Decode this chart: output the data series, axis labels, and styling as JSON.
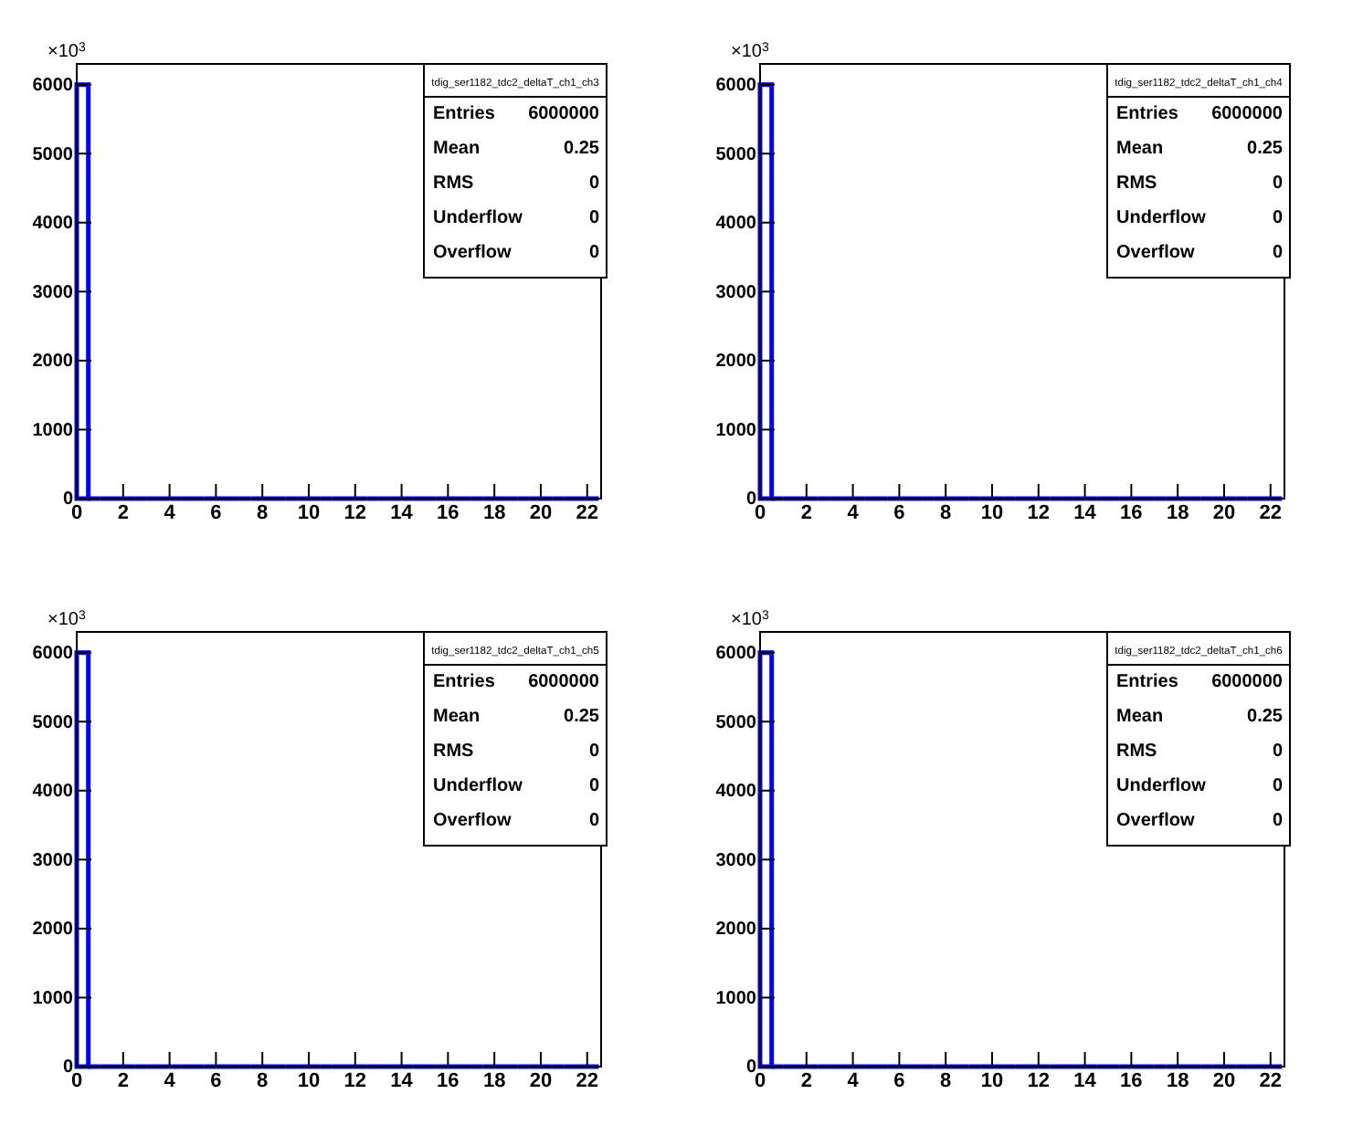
{
  "chart_data": [
    {
      "type": "histogram",
      "bins": [
        0,
        0.5,
        1,
        1.5,
        2,
        2.5,
        3,
        3.5,
        4,
        4.5,
        5,
        5.5,
        6,
        6.5,
        7,
        7.5,
        8,
        8.5,
        9,
        9.5,
        10,
        10.5,
        11,
        11.5,
        12,
        12.5,
        13,
        13.5,
        14,
        14.5,
        15,
        15.5,
        16,
        16.5,
        17,
        17.5,
        18,
        18.5,
        19,
        19.5,
        20,
        20.5,
        21,
        21.5,
        22,
        22.5
      ],
      "values": [
        6000,
        0,
        0,
        0,
        0,
        0,
        0,
        0,
        0,
        0,
        0,
        0,
        0,
        0,
        0,
        0,
        0,
        0,
        0,
        0,
        0,
        0,
        0,
        0,
        0,
        0,
        0,
        0,
        0,
        0,
        0,
        0,
        0,
        0,
        0,
        0,
        0,
        0,
        0,
        0,
        0,
        0,
        0,
        0,
        0
      ],
      "color": "#0000ff",
      "xlim": [
        0,
        22.6
      ],
      "xticks": [
        0,
        2,
        4,
        6,
        8,
        10,
        12,
        14,
        16,
        18,
        20,
        22
      ],
      "ylim": [
        0,
        6300
      ],
      "yticks": [
        0,
        1000,
        2000,
        3000,
        4000,
        5000,
        6000
      ],
      "annotations": [
        "×10$^{3}$",
        "tdig_ser1182_tdc2_deltaT_ch1_ch3",
        "Entries",
        "6000000",
        "Mean",
        "0.25",
        "RMS",
        "0",
        "Underflow",
        "0",
        "Overflow",
        "0"
      ]
    },
    {
      "type": "histogram",
      "bins": [
        0,
        0.5,
        1,
        1.5,
        2,
        2.5,
        3,
        3.5,
        4,
        4.5,
        5,
        5.5,
        6,
        6.5,
        7,
        7.5,
        8,
        8.5,
        9,
        9.5,
        10,
        10.5,
        11,
        11.5,
        12,
        12.5,
        13,
        13.5,
        14,
        14.5,
        15,
        15.5,
        16,
        16.5,
        17,
        17.5,
        18,
        18.5,
        19,
        19.5,
        20,
        20.5,
        21,
        21.5,
        22,
        22.5
      ],
      "values": [
        6000,
        0,
        0,
        0,
        0,
        0,
        0,
        0,
        0,
        0,
        0,
        0,
        0,
        0,
        0,
        0,
        0,
        0,
        0,
        0,
        0,
        0,
        0,
        0,
        0,
        0,
        0,
        0,
        0,
        0,
        0,
        0,
        0,
        0,
        0,
        0,
        0,
        0,
        0,
        0,
        0,
        0,
        0,
        0,
        0
      ],
      "color": "#0000ff",
      "xlim": [
        0,
        22.6
      ],
      "xticks": [
        0,
        2,
        4,
        6,
        8,
        10,
        12,
        14,
        16,
        18,
        20,
        22
      ],
      "ylim": [
        0,
        6300
      ],
      "yticks": [
        0,
        1000,
        2000,
        3000,
        4000,
        5000,
        6000
      ],
      "annotations": [
        "×10$^{3}$",
        "tdig_ser1182_tdc2_deltaT_ch1_ch4",
        "Entries",
        "6000000",
        "Mean",
        "0.25",
        "RMS",
        "0",
        "Underflow",
        "0",
        "Overflow",
        "0"
      ]
    },
    {
      "type": "histogram",
      "bins": [
        0,
        0.5,
        1,
        1.5,
        2,
        2.5,
        3,
        3.5,
        4,
        4.5,
        5,
        5.5,
        6,
        6.5,
        7,
        7.5,
        8,
        8.5,
        9,
        9.5,
        10,
        10.5,
        11,
        11.5,
        12,
        12.5,
        13,
        13.5,
        14,
        14.5,
        15,
        15.5,
        16,
        16.5,
        17,
        17.5,
        18,
        18.5,
        19,
        19.5,
        20,
        20.5,
        21,
        21.5,
        22,
        22.5
      ],
      "values": [
        6000,
        0,
        0,
        0,
        0,
        0,
        0,
        0,
        0,
        0,
        0,
        0,
        0,
        0,
        0,
        0,
        0,
        0,
        0,
        0,
        0,
        0,
        0,
        0,
        0,
        0,
        0,
        0,
        0,
        0,
        0,
        0,
        0,
        0,
        0,
        0,
        0,
        0,
        0,
        0,
        0,
        0,
        0,
        0,
        0
      ],
      "color": "#0000ff",
      "xlim": [
        0,
        22.6
      ],
      "xticks": [
        0,
        2,
        4,
        6,
        8,
        10,
        12,
        14,
        16,
        18,
        20,
        22
      ],
      "ylim": [
        0,
        6300
      ],
      "yticks": [
        0,
        1000,
        2000,
        3000,
        4000,
        5000,
        6000
      ],
      "annotations": [
        "×10$^{3}$",
        "tdig_ser1182_tdc2_deltaT_ch1_ch5",
        "Entries",
        "6000000",
        "Mean",
        "0.25",
        "RMS",
        "0",
        "Underflow",
        "0",
        "Overflow",
        "0"
      ]
    },
    {
      "type": "histogram",
      "bins": [
        0,
        0.5,
        1,
        1.5,
        2,
        2.5,
        3,
        3.5,
        4,
        4.5,
        5,
        5.5,
        6,
        6.5,
        7,
        7.5,
        8,
        8.5,
        9,
        9.5,
        10,
        10.5,
        11,
        11.5,
        12,
        12.5,
        13,
        13.5,
        14,
        14.5,
        15,
        15.5,
        16,
        16.5,
        17,
        17.5,
        18,
        18.5,
        19,
        19.5,
        20,
        20.5,
        21,
        21.5,
        22,
        22.5
      ],
      "values": [
        6000,
        0,
        0,
        0,
        0,
        0,
        0,
        0,
        0,
        0,
        0,
        0,
        0,
        0,
        0,
        0,
        0,
        0,
        0,
        0,
        0,
        0,
        0,
        0,
        0,
        0,
        0,
        0,
        0,
        0,
        0,
        0,
        0,
        0,
        0,
        0,
        0,
        0,
        0,
        0,
        0,
        0,
        0,
        0,
        0
      ],
      "color": "#0000ff",
      "xlim": [
        0,
        22.6
      ],
      "xticks": [
        0,
        2,
        4,
        6,
        8,
        10,
        12,
        14,
        16,
        18,
        20,
        22
      ],
      "ylim": [
        0,
        6300
      ],
      "yticks": [
        0,
        1000,
        2000,
        3000,
        4000,
        5000,
        6000
      ],
      "annotations": [
        "×10$^{3}$",
        "tdig_ser1182_tdc2_deltaT_ch1_ch6",
        "Entries",
        "6000000",
        "Mean",
        "0.25",
        "RMS",
        "0",
        "Underflow",
        "0",
        "Overflow",
        "0"
      ]
    }
  ]
}
